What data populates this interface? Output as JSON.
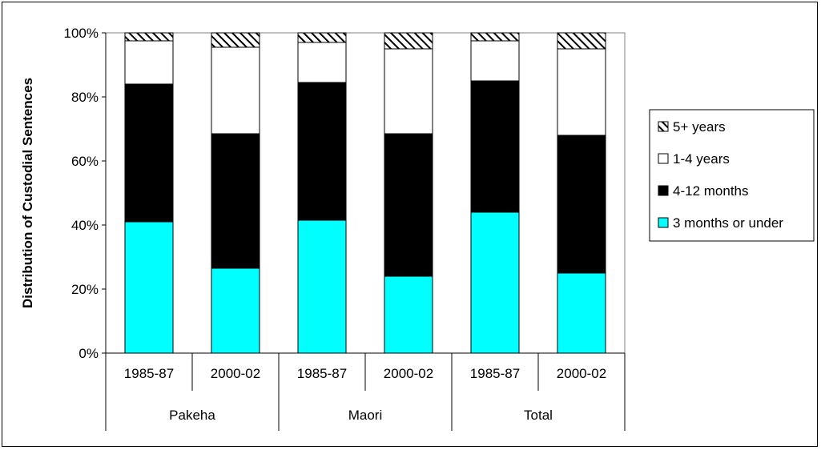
{
  "chart_data": {
    "type": "bar",
    "stacked": true,
    "percent": true,
    "ylabel": "Distribution of Custodial Sentences",
    "xlabel": "",
    "ylim": [
      0,
      100
    ],
    "yticks": [
      "0%",
      "20%",
      "40%",
      "60%",
      "80%",
      "100%"
    ],
    "categories": [
      "1985-87",
      "2000-02",
      "1985-87",
      "2000-02",
      "1985-87",
      "2000-02"
    ],
    "groups": [
      {
        "label": "Pakeha",
        "span": 2
      },
      {
        "label": "Maori",
        "span": 2
      },
      {
        "label": "Total",
        "span": 2
      }
    ],
    "series": [
      {
        "name": "3 months or under",
        "color": "#00ffff",
        "pattern": "solid",
        "values": [
          41,
          26.5,
          41.5,
          24,
          44,
          25
        ]
      },
      {
        "name": "4-12 months",
        "color": "#000000",
        "pattern": "solid",
        "values": [
          43,
          42,
          43,
          44.5,
          41,
          43
        ]
      },
      {
        "name": "1-4 years",
        "color": "#ffffff",
        "pattern": "solid",
        "values": [
          13.5,
          27,
          12.5,
          26.5,
          12.5,
          27
        ]
      },
      {
        "name": "5+ years",
        "color": "#000000",
        "pattern": "hatch",
        "values": [
          2.5,
          4.5,
          3,
          5,
          2.5,
          5
        ]
      }
    ],
    "legend_order": [
      "5+ years",
      "1-4 years",
      "4-12 months",
      "3 months or under"
    ],
    "legend_position": "right",
    "grid": false
  }
}
